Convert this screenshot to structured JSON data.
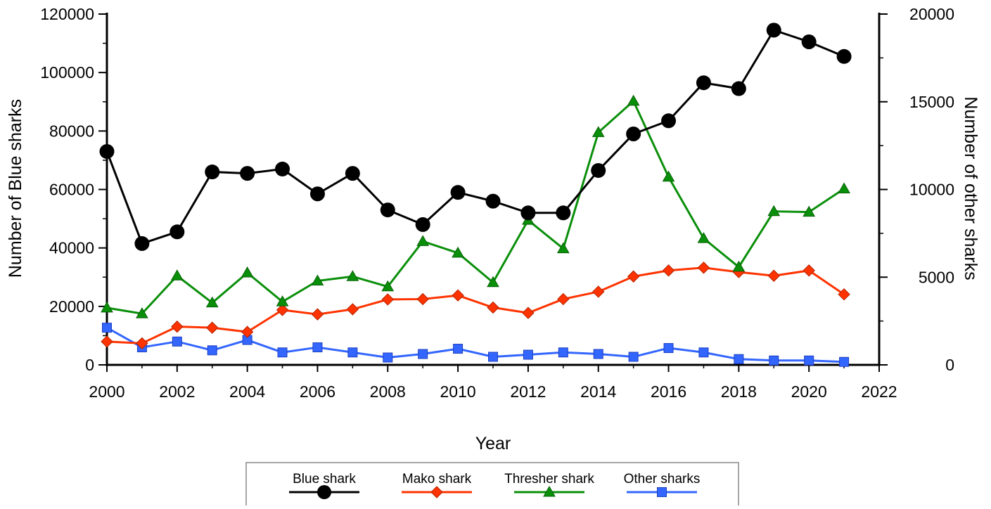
{
  "chart_data": {
    "type": "line",
    "xlabel": "Year",
    "ylabel": "Number of Blue sharks",
    "y2label": "Number of other sharks",
    "xlim": [
      2000,
      2022
    ],
    "ylim": [
      0,
      120000
    ],
    "y2lim": [
      0,
      20000
    ],
    "x_ticks": [
      "2000",
      "2002",
      "2004",
      "2006",
      "2008",
      "2010",
      "2012",
      "2014",
      "2016",
      "2018",
      "2020",
      "2022"
    ],
    "y_ticks": [
      "0",
      "20000",
      "40000",
      "60000",
      "80000",
      "100000",
      "120000"
    ],
    "y2_ticks": [
      "0",
      "5000",
      "10000",
      "15000",
      "20000"
    ],
    "grid": false,
    "legend_position": "bottom-center",
    "x": [
      2000,
      2001,
      2002,
      2003,
      2004,
      2005,
      2006,
      2007,
      2008,
      2009,
      2010,
      2011,
      2012,
      2013,
      2014,
      2015,
      2016,
      2017,
      2018,
      2019,
      2020,
      2021
    ],
    "series": [
      {
        "name": "Blue shark",
        "axis": "left",
        "color": "#000000",
        "marker": "circle",
        "values": [
          73000,
          41500,
          45500,
          66000,
          65500,
          67000,
          58500,
          65500,
          53000,
          48000,
          59000,
          56000,
          52000,
          52000,
          66500,
          79000,
          83500,
          96500,
          94500,
          114500,
          110500,
          105500
        ]
      },
      {
        "name": "Mako shark",
        "axis": "right",
        "color": "#ff3300",
        "marker": "diamond",
        "values": [
          1330,
          1230,
          2180,
          2120,
          1880,
          3130,
          2880,
          3170,
          3730,
          3750,
          3960,
          3270,
          2960,
          3750,
          4170,
          5040,
          5380,
          5540,
          5290,
          5080,
          5380,
          4020
        ]
      },
      {
        "name": "Thresher shark",
        "axis": "right",
        "color": "#0a8f0a",
        "marker": "triangle",
        "values": [
          3250,
          2920,
          5080,
          3540,
          5250,
          3600,
          4790,
          5040,
          4460,
          7040,
          6380,
          4700,
          8250,
          6630,
          13250,
          15040,
          10710,
          7210,
          5580,
          8750,
          8710,
          10040
        ]
      },
      {
        "name": "Other sharks",
        "axis": "right",
        "color": "#3366ff",
        "marker": "square",
        "values": [
          2120,
          1000,
          1330,
          830,
          1420,
          710,
          1000,
          710,
          420,
          620,
          920,
          460,
          580,
          710,
          620,
          460,
          960,
          710,
          330,
          250,
          250,
          170
        ]
      }
    ]
  }
}
